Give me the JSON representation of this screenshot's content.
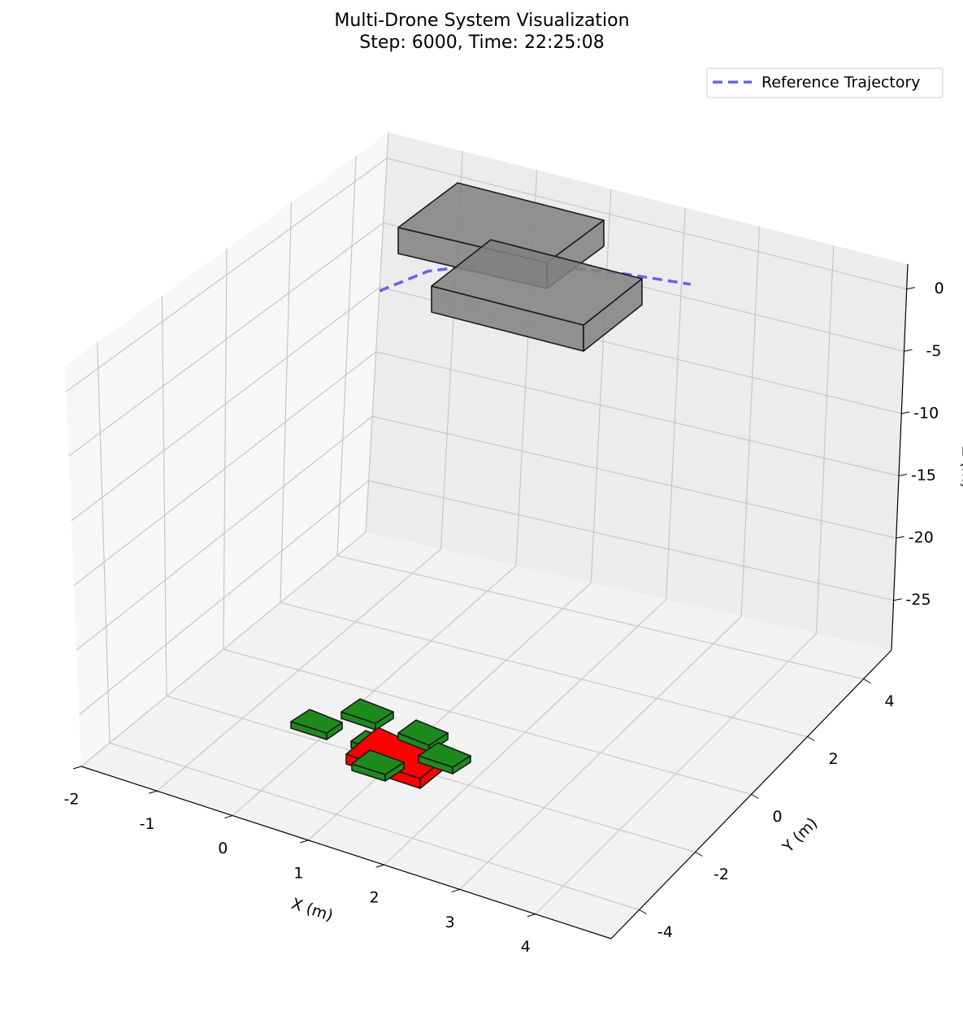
{
  "chart_data": {
    "type": "line3d",
    "title": "Multi-Drone System Visualization",
    "subtitle": "Step: 6000, Time: 22:25:08",
    "xlabel": "X (m)",
    "ylabel": "Y (m)",
    "zlabel": "Z (m)",
    "xlim": [
      -2,
      5
    ],
    "ylim": [
      -5,
      5
    ],
    "zlim": [
      -29,
      2
    ],
    "xticks": [
      -2,
      -1,
      0,
      1,
      2,
      3,
      4
    ],
    "yticks": [
      -4,
      -2,
      0,
      2,
      4
    ],
    "zticks": [
      0,
      -5,
      -10,
      -15,
      -20,
      -25
    ],
    "grid": true,
    "legend": "upper right",
    "series": [
      {
        "name": "Reference Trajectory",
        "color": "#6464e6",
        "linestyle": "dashed",
        "x": [
          -0.32,
          -0.1,
          0.4,
          1.15,
          1.9,
          2.7
        ],
        "y": [
          0.8,
          1.8,
          2.5,
          3.0,
          3.3,
          3.5
        ],
        "z": [
          0,
          0,
          0,
          0,
          0,
          0
        ]
      }
    ]
  }
}
